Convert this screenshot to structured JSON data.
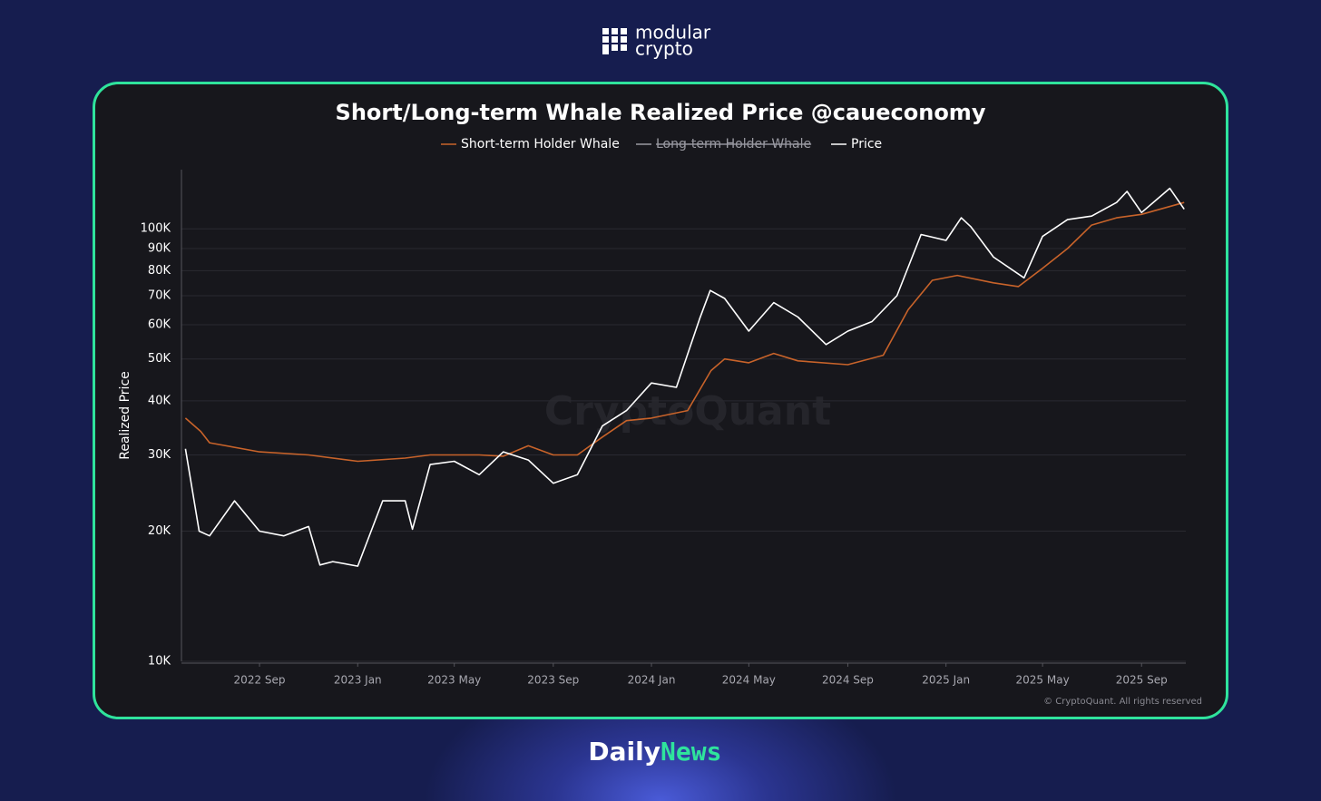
{
  "header": {
    "brand": [
      "modular",
      "crypto"
    ]
  },
  "chart_data": {
    "type": "line",
    "title": "Short/Long-term Whale Realized Price @caueconomy",
    "y_label": "Realized Price",
    "watermark": "CryptoQuant",
    "copyright": "© CryptoQuant. All rights reserved",
    "y_scale": "log",
    "grid": true,
    "legend": "top",
    "xlim": [
      "2022-05-27",
      "2025-10-26"
    ],
    "xticks": [
      {
        "value": "2022-09-01",
        "label": "2022 Sep"
      },
      {
        "value": "2023-01-01",
        "label": "2023 Jan"
      },
      {
        "value": "2023-05-01",
        "label": "2023 May"
      },
      {
        "value": "2023-09-01",
        "label": "2023 Sep"
      },
      {
        "value": "2024-01-01",
        "label": "2024 Jan"
      },
      {
        "value": "2024-05-01",
        "label": "2024 May"
      },
      {
        "value": "2024-09-01",
        "label": "2024 Sep"
      },
      {
        "value": "2025-01-01",
        "label": "2025 Jan"
      },
      {
        "value": "2025-05-01",
        "label": "2025 May"
      },
      {
        "value": "2025-09-01",
        "label": "2025 Sep"
      }
    ],
    "ylim": [
      10000,
      137000
    ],
    "yticks": [
      {
        "value": 10000,
        "label": "10K"
      },
      {
        "value": 20000,
        "label": "20K"
      },
      {
        "value": 30000,
        "label": "30K"
      },
      {
        "value": 40000,
        "label": "40K"
      },
      {
        "value": 50000,
        "label": "50K"
      },
      {
        "value": 60000,
        "label": "60K"
      },
      {
        "value": 70000,
        "label": "70K"
      },
      {
        "value": 80000,
        "label": "80K"
      },
      {
        "value": 90000,
        "label": "90K"
      },
      {
        "value": 100000,
        "label": "100K"
      }
    ],
    "series": [
      {
        "name": "Short-term Holder Whale",
        "color": "#c8632a",
        "visible": true,
        "x": [
          "2022-06-01",
          "2022-06-20",
          "2022-07-01",
          "2022-09-01",
          "2022-11-01",
          "2023-01-01",
          "2023-03-01",
          "2023-04-01",
          "2023-06-01",
          "2023-07-01",
          "2023-08-01",
          "2023-09-01",
          "2023-10-01",
          "2023-11-01",
          "2023-12-01",
          "2024-01-01",
          "2024-02-15",
          "2024-03-15",
          "2024-04-01",
          "2024-05-01",
          "2024-06-01",
          "2024-07-01",
          "2024-09-01",
          "2024-10-15",
          "2024-11-15",
          "2024-12-15",
          "2025-01-15",
          "2025-03-01",
          "2025-04-01",
          "2025-05-01",
          "2025-06-01",
          "2025-07-01",
          "2025-08-01",
          "2025-09-01",
          "2025-10-24"
        ],
        "values": [
          36500,
          34000,
          32000,
          30500,
          30000,
          29000,
          29500,
          30000,
          30000,
          29800,
          31500,
          30000,
          30000,
          33000,
          36000,
          36500,
          38000,
          47000,
          50000,
          49000,
          51500,
          49500,
          48500,
          51000,
          65000,
          76000,
          78000,
          75000,
          73500,
          81000,
          90000,
          102000,
          106000,
          108000,
          115000
        ]
      },
      {
        "name": "Long-term Holder Whale",
        "color": "#9a9aa2",
        "visible": false,
        "x": [],
        "values": []
      },
      {
        "name": "Price",
        "color": "#ffffff",
        "visible": true,
        "x": [
          "2022-06-01",
          "2022-06-18",
          "2022-07-01",
          "2022-08-01",
          "2022-09-01",
          "2022-10-01",
          "2022-11-01",
          "2022-11-15",
          "2022-12-01",
          "2023-01-01",
          "2023-02-01",
          "2023-03-01",
          "2023-03-10",
          "2023-04-01",
          "2023-05-01",
          "2023-06-01",
          "2023-07-01",
          "2023-08-01",
          "2023-09-01",
          "2023-10-01",
          "2023-11-01",
          "2023-12-01",
          "2024-01-01",
          "2024-02-01",
          "2024-03-01",
          "2024-03-14",
          "2024-04-01",
          "2024-05-01",
          "2024-06-01",
          "2024-07-01",
          "2024-08-05",
          "2024-09-01",
          "2024-10-01",
          "2024-11-01",
          "2024-12-01",
          "2025-01-01",
          "2025-01-20",
          "2025-02-01",
          "2025-03-01",
          "2025-04-08",
          "2025-05-01",
          "2025-06-01",
          "2025-07-01",
          "2025-08-01",
          "2025-08-14",
          "2025-09-01",
          "2025-10-06",
          "2025-10-24"
        ],
        "values": [
          31000,
          20000,
          19500,
          23500,
          20000,
          19500,
          20500,
          16700,
          17000,
          16600,
          23500,
          23500,
          20200,
          28500,
          29000,
          27000,
          30500,
          29200,
          25800,
          27000,
          35000,
          38000,
          44000,
          43000,
          62000,
          72000,
          69000,
          58000,
          67500,
          62500,
          54000,
          58000,
          61000,
          70000,
          97000,
          94000,
          106000,
          101000,
          86000,
          77000,
          96000,
          105000,
          107000,
          115000,
          122000,
          109000,
          124000,
          111000
        ]
      }
    ]
  },
  "footer": {
    "brand": [
      "Daily",
      "News"
    ]
  }
}
